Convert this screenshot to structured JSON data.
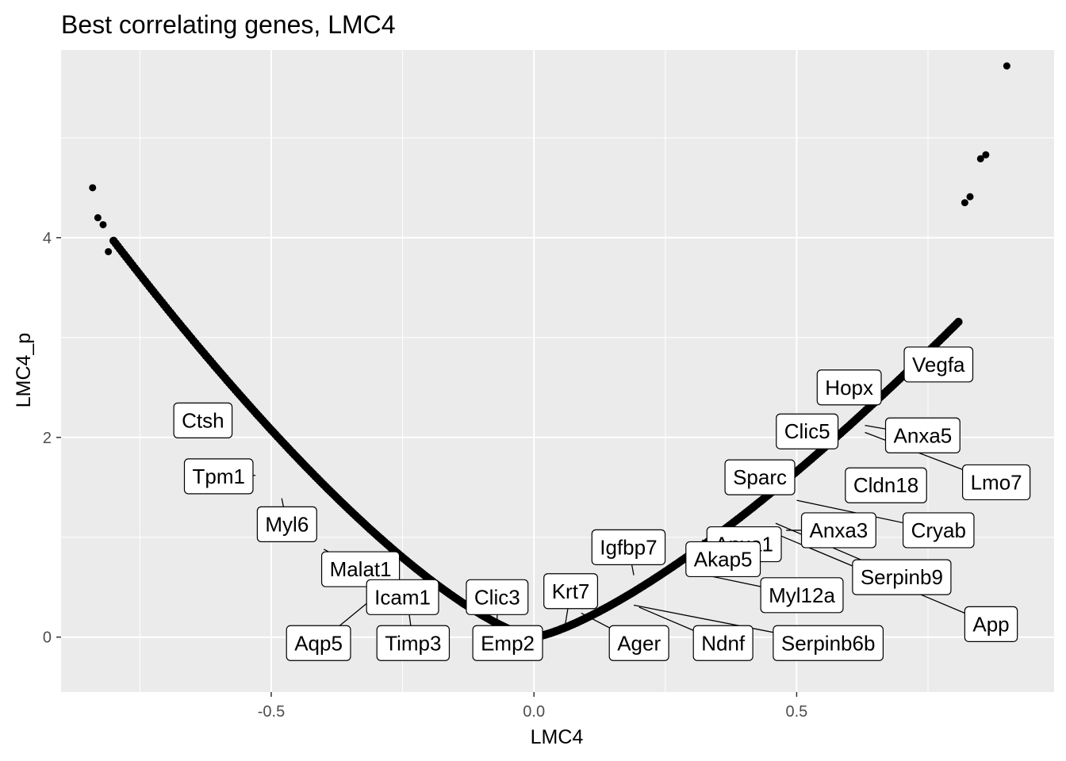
{
  "chart_data": {
    "type": "scatter",
    "title": "Best correlating genes, LMC4",
    "xlabel": "LMC4",
    "ylabel": "LMC4_p",
    "xlim": [
      -0.9,
      0.99
    ],
    "ylim": [
      -0.55,
      5.88
    ],
    "x_ticks": [
      -0.5,
      0.0,
      0.5
    ],
    "x_tick_labels": [
      "-0.5",
      "0.0",
      "0.5"
    ],
    "y_ticks": [
      0,
      2,
      4
    ],
    "y_tick_labels": [
      "0",
      "2",
      "4"
    ],
    "grid": true,
    "background": "#ebebeb",
    "grid_color": "#ffffff",
    "point_color": "#000000",
    "outlier_points": [
      {
        "x": -0.84,
        "y": 4.5
      },
      {
        "x": -0.83,
        "y": 4.2
      },
      {
        "x": -0.82,
        "y": 4.13
      },
      {
        "x": -0.81,
        "y": 3.86
      },
      {
        "x": 0.82,
        "y": 4.35
      },
      {
        "x": 0.83,
        "y": 4.41
      },
      {
        "x": 0.85,
        "y": 4.79
      },
      {
        "x": 0.86,
        "y": 4.83
      },
      {
        "x": 0.9,
        "y": 5.72
      }
    ],
    "curve_band": {
      "x_min": -0.8,
      "x_max": 0.81
    },
    "labels": [
      {
        "text": "Ctsh",
        "x": -0.63,
        "y": 2.17,
        "px": -0.63,
        "py": 2.17
      },
      {
        "text": "Tpm1",
        "x": -0.6,
        "y": 1.61,
        "px": -0.53,
        "py": 1.62
      },
      {
        "text": "Myl6",
        "x": -0.47,
        "y": 1.13,
        "px": -0.48,
        "py": 1.39
      },
      {
        "text": "Malat1",
        "x": -0.33,
        "y": 0.68,
        "px": -0.4,
        "py": 0.88
      },
      {
        "text": "Icam1",
        "x": -0.25,
        "y": 0.4,
        "px": -0.27,
        "py": 0.45
      },
      {
        "text": "Aqp5",
        "x": -0.41,
        "y": -0.06,
        "px": -0.29,
        "py": 0.46
      },
      {
        "text": "Timp3",
        "x": -0.23,
        "y": -0.06,
        "px": -0.24,
        "py": 0.33
      },
      {
        "text": "Clic3",
        "x": -0.07,
        "y": 0.4,
        "px": -0.07,
        "py": 0.15
      },
      {
        "text": "Emp2",
        "x": -0.05,
        "y": -0.06,
        "px": -0.05,
        "py": 0.06
      },
      {
        "text": "Krt7",
        "x": 0.07,
        "y": 0.46,
        "px": 0.06,
        "py": 0.14
      },
      {
        "text": "Ager",
        "x": 0.2,
        "y": -0.06,
        "px": 0.09,
        "py": 0.24
      },
      {
        "text": "Ndnf",
        "x": 0.36,
        "y": -0.06,
        "px": 0.2,
        "py": 0.3
      },
      {
        "text": "Serpinb6b",
        "x": 0.56,
        "y": -0.06,
        "px": 0.19,
        "py": 0.32
      },
      {
        "text": "Igfbp7",
        "x": 0.18,
        "y": 0.9,
        "px": 0.19,
        "py": 0.62
      },
      {
        "text": "Anxa1",
        "x": 0.4,
        "y": 0.93,
        "px": 0.32,
        "py": 0.97
      },
      {
        "text": "Akap5",
        "x": 0.36,
        "y": 0.78,
        "px": 0.34,
        "py": 0.78
      },
      {
        "text": "Myl12a",
        "x": 0.51,
        "y": 0.42,
        "px": 0.3,
        "py": 0.65
      },
      {
        "text": "Hopx",
        "x": 0.6,
        "y": 2.5,
        "px": 0.6,
        "py": 2.5
      },
      {
        "text": "Vegfa",
        "x": 0.77,
        "y": 2.73,
        "px": 0.72,
        "py": 2.73
      },
      {
        "text": "Clic5",
        "x": 0.52,
        "y": 2.06,
        "px": 0.52,
        "py": 2.06
      },
      {
        "text": "Anxa5",
        "x": 0.74,
        "y": 2.02,
        "px": 0.63,
        "py": 2.12
      },
      {
        "text": "Lmo7",
        "x": 0.88,
        "y": 1.55,
        "px": 0.63,
        "py": 2.05
      },
      {
        "text": "Sparc",
        "x": 0.43,
        "y": 1.6,
        "px": 0.43,
        "py": 1.6
      },
      {
        "text": "Cldn18",
        "x": 0.67,
        "y": 1.52,
        "px": 0.67,
        "py": 1.52
      },
      {
        "text": "Anxa3",
        "x": 0.58,
        "y": 1.07,
        "px": 0.48,
        "py": 1.07
      },
      {
        "text": "Cryab",
        "x": 0.77,
        "y": 1.07,
        "px": 0.5,
        "py": 1.37
      },
      {
        "text": "Serpinb9",
        "x": 0.7,
        "y": 0.6,
        "px": 0.46,
        "py": 1.14
      },
      {
        "text": "App",
        "x": 0.87,
        "y": 0.13,
        "px": 0.44,
        "py": 1.08
      }
    ]
  }
}
